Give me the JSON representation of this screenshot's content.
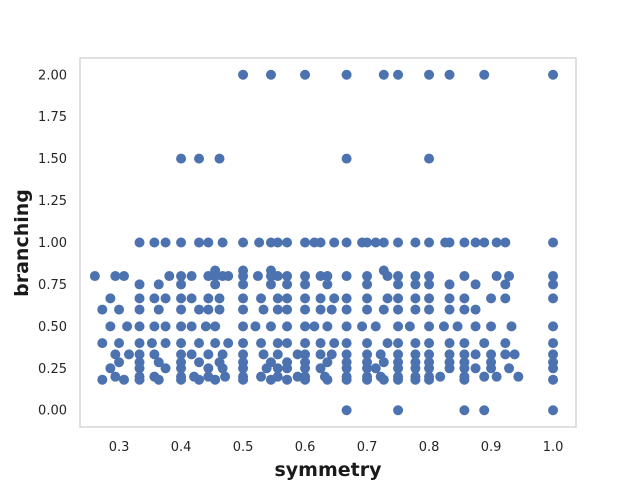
{
  "chart_data": {
    "type": "scatter",
    "title": "",
    "xlabel": "symmetry",
    "ylabel": "branching",
    "xlim": [
      0.237,
      1.037
    ],
    "ylim": [
      -0.1,
      2.1
    ],
    "xticks": [
      0.3,
      0.4,
      0.5,
      0.6,
      0.7,
      0.8,
      0.9,
      1.0
    ],
    "xtick_labels": [
      "0.3",
      "0.4",
      "0.5",
      "0.6",
      "0.7",
      "0.8",
      "0.9",
      "1.0"
    ],
    "yticks": [
      0.0,
      0.25,
      0.5,
      0.75,
      1.0,
      1.25,
      1.5,
      1.75,
      2.0
    ],
    "ytick_labels": [
      "0.00",
      "0.25",
      "0.50",
      "0.75",
      "1.00",
      "1.25",
      "1.50",
      "1.75",
      "2.00"
    ],
    "grid": false,
    "legend": "none",
    "marker_color": "#4C72B0",
    "point_groups": [
      {
        "x": [
          0.5,
          0.545,
          0.6,
          0.667,
          0.727,
          0.75,
          0.8,
          0.833,
          0.889,
          1.0
        ],
        "y": 2.0
      },
      {
        "x": [
          0.4,
          0.429,
          0.462,
          0.667,
          0.8
        ],
        "y": 1.5
      },
      {
        "x": [
          0.333,
          0.357,
          0.375,
          0.4,
          0.429,
          0.444,
          0.467,
          0.5,
          0.526,
          0.545,
          0.556,
          0.571,
          0.6,
          0.615,
          0.625,
          0.647,
          0.667,
          0.692,
          0.7,
          0.714,
          0.727,
          0.75,
          0.778,
          0.8,
          0.826,
          0.833,
          0.857,
          0.875,
          0.889,
          0.909,
          0.923,
          1.0
        ],
        "y": 1.0
      },
      {
        "x": [
          0.455,
          0.5,
          0.545,
          0.727
        ],
        "y": 0.833
      },
      {
        "x": [
          0.261,
          0.294,
          0.308,
          0.381,
          0.4,
          0.417,
          0.444,
          0.455,
          0.467,
          0.476,
          0.5,
          0.524,
          0.545,
          0.556,
          0.571,
          0.6,
          0.625,
          0.636,
          0.667,
          0.7,
          0.733,
          0.75,
          0.778,
          0.8,
          0.857,
          0.909,
          0.929,
          1.0
        ],
        "y": 0.8
      },
      {
        "x": [
          0.333,
          0.364,
          0.4,
          0.455,
          0.5,
          0.545,
          0.571,
          0.6,
          0.636,
          0.7,
          0.75,
          0.778,
          0.8,
          0.833,
          0.875,
          0.923,
          1.0
        ],
        "y": 0.75
      },
      {
        "x": [
          0.286,
          0.333,
          0.357,
          0.375,
          0.4,
          0.417,
          0.444,
          0.462,
          0.5,
          0.529,
          0.556,
          0.571,
          0.6,
          0.625,
          0.647,
          0.667,
          0.7,
          0.733,
          0.75,
          0.778,
          0.8,
          0.833,
          0.857,
          0.9,
          0.923,
          1.0
        ],
        "y": 0.667
      },
      {
        "x": [
          0.273,
          0.3,
          0.333,
          0.364,
          0.4,
          0.429,
          0.444,
          0.462,
          0.5,
          0.533,
          0.556,
          0.571,
          0.6,
          0.625,
          0.643,
          0.667,
          0.7,
          0.727,
          0.75,
          0.778,
          0.8,
          0.833,
          0.857,
          0.875
        ],
        "y": 0.6
      },
      {
        "x": [
          0.286,
          0.313,
          0.333,
          0.357,
          0.375,
          0.4,
          0.417,
          0.44,
          0.455,
          0.5,
          0.52,
          0.545,
          0.571,
          0.6,
          0.615,
          0.636,
          0.667,
          0.692,
          0.714,
          0.75,
          0.769,
          0.8,
          0.824,
          0.846,
          0.875,
          0.9,
          0.933,
          1.0
        ],
        "y": 0.5
      },
      {
        "x": [
          0.273,
          0.3,
          0.333,
          0.353,
          0.375,
          0.4,
          0.429,
          0.455,
          0.476,
          0.5,
          0.529,
          0.556,
          0.571,
          0.6,
          0.625,
          0.647,
          0.667,
          0.7,
          0.733,
          0.75,
          0.778,
          0.8,
          0.833,
          0.857,
          0.889,
          0.923,
          1.0
        ],
        "y": 0.4
      },
      {
        "x": [
          0.294,
          0.316,
          0.333,
          0.357,
          0.4,
          0.417,
          0.444,
          0.467,
          0.5,
          0.533,
          0.556,
          0.588,
          0.6,
          0.625,
          0.643,
          0.667,
          0.7,
          0.722,
          0.75,
          0.778,
          0.8,
          0.833,
          0.857,
          0.875,
          0.9,
          0.923,
          0.938,
          1.0
        ],
        "y": 0.333
      },
      {
        "x": [
          0.3,
          0.333,
          0.364,
          0.4,
          0.429,
          0.462,
          0.5,
          0.545,
          0.571,
          0.6,
          0.636,
          0.667,
          0.7,
          0.727,
          0.75,
          0.778,
          0.8,
          0.833,
          0.857,
          0.9,
          1.0
        ],
        "y": 0.286
      },
      {
        "x": [
          0.286,
          0.333,
          0.375,
          0.4,
          0.444,
          0.467,
          0.5,
          0.538,
          0.556,
          0.571,
          0.6,
          0.625,
          0.667,
          0.7,
          0.714,
          0.75,
          0.778,
          0.8,
          0.833,
          0.857,
          0.875,
          0.9,
          0.929,
          1.0
        ],
        "y": 0.25
      },
      {
        "x": [
          0.294,
          0.333,
          0.357,
          0.4,
          0.421,
          0.444,
          0.471,
          0.5,
          0.529,
          0.556,
          0.588,
          0.6,
          0.632,
          0.667,
          0.7,
          0.722,
          0.75,
          0.778,
          0.8,
          0.818,
          0.857,
          0.889,
          0.909,
          0.944
        ],
        "y": 0.2
      },
      {
        "x": [
          0.273,
          0.308,
          0.333,
          0.364,
          0.4,
          0.429,
          0.455,
          0.5,
          0.545,
          0.571,
          0.6,
          0.636,
          0.667,
          0.7,
          0.727,
          0.75,
          0.778,
          0.8,
          0.857,
          1.0
        ],
        "y": 0.182
      },
      {
        "x": [
          0.667,
          0.75,
          0.857,
          0.889,
          1.0
        ],
        "y": 0.0
      }
    ]
  }
}
